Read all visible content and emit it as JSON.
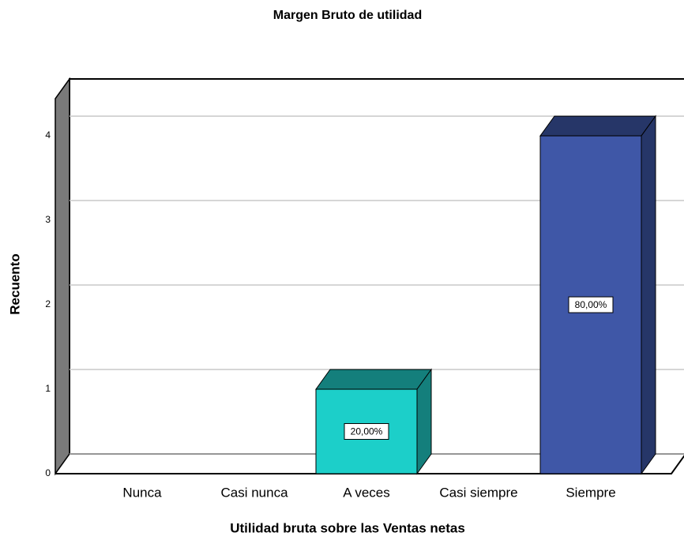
{
  "chart_data": {
    "type": "bar3d",
    "title": "Margen Bruto de utilidad",
    "x_label": "Utilidad bruta sobre las Ventas netas",
    "y_label": "Recuento",
    "categories": [
      "Nunca",
      "Casi nunca",
      "A veces",
      "Casi siempre",
      "Siempre"
    ],
    "values": [
      0,
      0,
      1,
      0,
      4
    ],
    "percent_labels": [
      null,
      null,
      "20,00%",
      null,
      "80,00%"
    ],
    "colors": [
      "#1ccfc9",
      "#1ccfc9",
      "#1ccfc9",
      "#3f57a7",
      "#3f57a7"
    ],
    "side_colors": [
      "#147f7c",
      "#147f7c",
      "#147f7c",
      "#263668",
      "#263668"
    ],
    "ylim": [
      0,
      4.44
    ],
    "yticks": [
      0,
      1,
      2,
      3,
      4
    ],
    "grid": true
  }
}
